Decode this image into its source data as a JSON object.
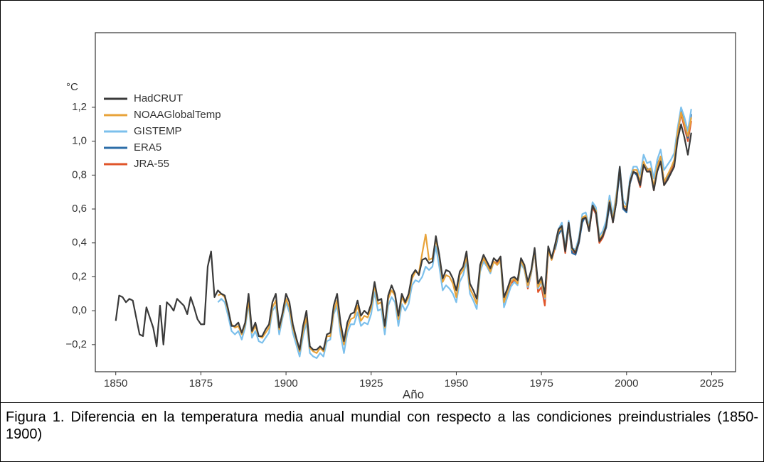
{
  "chart_data": {
    "type": "line",
    "xlabel": "Año",
    "ylabel": "°C",
    "x": [
      1850,
      1851,
      1852,
      1853,
      1854,
      1855,
      1856,
      1857,
      1858,
      1859,
      1860,
      1861,
      1862,
      1863,
      1864,
      1865,
      1866,
      1867,
      1868,
      1869,
      1870,
      1871,
      1872,
      1873,
      1874,
      1875,
      1876,
      1877,
      1878,
      1879,
      1880,
      1881,
      1882,
      1883,
      1884,
      1885,
      1886,
      1887,
      1888,
      1889,
      1890,
      1891,
      1892,
      1893,
      1894,
      1895,
      1896,
      1897,
      1898,
      1899,
      1900,
      1901,
      1902,
      1903,
      1904,
      1905,
      1906,
      1907,
      1908,
      1909,
      1910,
      1911,
      1912,
      1913,
      1914,
      1915,
      1916,
      1917,
      1918,
      1919,
      1920,
      1921,
      1922,
      1923,
      1924,
      1925,
      1926,
      1927,
      1928,
      1929,
      1930,
      1931,
      1932,
      1933,
      1934,
      1935,
      1936,
      1937,
      1938,
      1939,
      1940,
      1941,
      1942,
      1943,
      1944,
      1945,
      1946,
      1947,
      1948,
      1949,
      1950,
      1951,
      1952,
      1953,
      1954,
      1955,
      1956,
      1957,
      1958,
      1959,
      1960,
      1961,
      1962,
      1963,
      1964,
      1965,
      1966,
      1967,
      1968,
      1969,
      1970,
      1971,
      1972,
      1973,
      1974,
      1975,
      1976,
      1977,
      1978,
      1979,
      1980,
      1981,
      1982,
      1983,
      1984,
      1985,
      1986,
      1987,
      1988,
      1989,
      1990,
      1991,
      1992,
      1993,
      1994,
      1995,
      1996,
      1997,
      1998,
      1999,
      2000,
      2001,
      2002,
      2003,
      2004,
      2005,
      2006,
      2007,
      2008,
      2009,
      2010,
      2011,
      2012,
      2013,
      2014,
      2015,
      2016,
      2017,
      2018,
      2019
    ],
    "series": [
      {
        "name": "HadCRUT",
        "color": "#3a3a3a",
        "values": [
          -0.06,
          0.09,
          0.08,
          0.05,
          0.07,
          0.06,
          -0.04,
          -0.14,
          -0.15,
          0.02,
          -0.04,
          -0.1,
          -0.21,
          0.03,
          -0.2,
          0.05,
          0.03,
          0.0,
          0.07,
          0.05,
          0.03,
          -0.02,
          0.08,
          0.02,
          -0.05,
          -0.08,
          -0.08,
          0.26,
          0.35,
          0.08,
          0.12,
          0.1,
          0.09,
          0.01,
          -0.09,
          -0.09,
          -0.07,
          -0.13,
          -0.07,
          0.1,
          -0.12,
          -0.07,
          -0.15,
          -0.15,
          -0.11,
          -0.08,
          0.05,
          0.1,
          -0.1,
          -0.01,
          0.1,
          0.05,
          -0.08,
          -0.16,
          -0.23,
          -0.09,
          0.0,
          -0.21,
          -0.23,
          -0.23,
          -0.21,
          -0.23,
          -0.14,
          -0.13,
          0.03,
          0.1,
          -0.07,
          -0.18,
          -0.07,
          -0.02,
          -0.01,
          0.06,
          -0.03,
          0.0,
          -0.02,
          0.04,
          0.17,
          0.06,
          0.07,
          -0.09,
          0.09,
          0.15,
          0.1,
          -0.03,
          0.1,
          0.05,
          0.1,
          0.21,
          0.24,
          0.21,
          0.3,
          0.31,
          0.28,
          0.29,
          0.44,
          0.33,
          0.19,
          0.24,
          0.23,
          0.19,
          0.12,
          0.23,
          0.26,
          0.35,
          0.16,
          0.12,
          0.07,
          0.27,
          0.33,
          0.29,
          0.25,
          0.31,
          0.29,
          0.32,
          0.08,
          0.13,
          0.19,
          0.2,
          0.18,
          0.31,
          0.27,
          0.17,
          0.24,
          0.37,
          0.16,
          0.2,
          0.1,
          0.38,
          0.31,
          0.39,
          0.48,
          0.5,
          0.35,
          0.52,
          0.37,
          0.34,
          0.41,
          0.54,
          0.55,
          0.47,
          0.62,
          0.58,
          0.41,
          0.44,
          0.5,
          0.64,
          0.52,
          0.64,
          0.85,
          0.61,
          0.59,
          0.76,
          0.82,
          0.81,
          0.74,
          0.86,
          0.82,
          0.82,
          0.71,
          0.82,
          0.88,
          0.74,
          0.77,
          0.81,
          0.85,
          1.01,
          1.1,
          1.02,
          0.92,
          1.05
        ]
      },
      {
        "name": "NOAAGlobalTemp",
        "color": "#e8a33a",
        "values": [
          null,
          null,
          null,
          null,
          null,
          null,
          null,
          null,
          null,
          null,
          null,
          null,
          null,
          null,
          null,
          null,
          null,
          null,
          null,
          null,
          null,
          null,
          null,
          null,
          null,
          null,
          null,
          null,
          null,
          null,
          0.09,
          0.1,
          0.08,
          0.0,
          -0.08,
          -0.1,
          -0.09,
          -0.14,
          -0.08,
          0.06,
          -0.13,
          -0.09,
          -0.15,
          -0.16,
          -0.13,
          -0.1,
          0.02,
          0.06,
          -0.11,
          -0.02,
          0.07,
          0.02,
          -0.1,
          -0.17,
          -0.24,
          -0.12,
          -0.04,
          -0.22,
          -0.24,
          -0.25,
          -0.22,
          -0.24,
          -0.15,
          -0.15,
          0.0,
          0.06,
          -0.1,
          -0.2,
          -0.1,
          -0.05,
          -0.04,
          0.03,
          -0.06,
          -0.03,
          -0.04,
          0.02,
          0.15,
          0.04,
          0.05,
          -0.1,
          0.07,
          0.12,
          0.09,
          -0.05,
          0.08,
          0.04,
          0.08,
          0.19,
          0.23,
          0.22,
          0.34,
          0.45,
          0.3,
          0.31,
          0.42,
          0.32,
          0.17,
          0.21,
          0.2,
          0.16,
          0.08,
          0.21,
          0.24,
          0.32,
          0.13,
          0.09,
          0.04,
          0.25,
          0.31,
          0.27,
          0.23,
          0.29,
          0.27,
          0.3,
          0.05,
          0.11,
          0.17,
          0.19,
          0.16,
          0.3,
          0.25,
          0.15,
          0.23,
          0.36,
          0.14,
          0.18,
          0.08,
          0.36,
          0.3,
          0.38,
          0.47,
          0.49,
          0.36,
          0.51,
          0.36,
          0.35,
          0.41,
          0.55,
          0.56,
          0.48,
          0.62,
          0.59,
          0.42,
          0.45,
          0.5,
          0.65,
          0.53,
          0.67,
          0.84,
          0.62,
          0.61,
          0.76,
          0.83,
          0.83,
          0.76,
          0.88,
          0.83,
          0.84,
          0.73,
          0.85,
          0.91,
          0.76,
          0.8,
          0.84,
          0.89,
          1.05,
          1.17,
          1.1,
          1.03,
          1.14
        ]
      },
      {
        "name": "GISTEMP",
        "color": "#7cc0ec",
        "values": [
          null,
          null,
          null,
          null,
          null,
          null,
          null,
          null,
          null,
          null,
          null,
          null,
          null,
          null,
          null,
          null,
          null,
          null,
          null,
          null,
          null,
          null,
          null,
          null,
          null,
          null,
          null,
          null,
          null,
          null,
          0.05,
          0.07,
          0.05,
          -0.03,
          -0.12,
          -0.14,
          -0.12,
          -0.17,
          -0.1,
          0.04,
          -0.16,
          -0.12,
          -0.18,
          -0.19,
          -0.16,
          -0.13,
          0.0,
          0.03,
          -0.14,
          -0.04,
          0.05,
          -0.01,
          -0.13,
          -0.2,
          -0.27,
          -0.15,
          -0.07,
          -0.25,
          -0.27,
          -0.28,
          -0.25,
          -0.27,
          -0.18,
          -0.17,
          -0.02,
          0.03,
          -0.14,
          -0.25,
          -0.13,
          -0.08,
          -0.08,
          -0.01,
          -0.09,
          -0.07,
          -0.08,
          -0.02,
          0.11,
          0.0,
          0.01,
          -0.14,
          0.03,
          0.08,
          0.05,
          -0.09,
          0.04,
          0.0,
          0.04,
          0.15,
          0.18,
          0.17,
          0.2,
          0.26,
          0.24,
          0.26,
          0.38,
          0.26,
          0.12,
          0.15,
          0.13,
          0.1,
          0.05,
          0.17,
          0.21,
          0.29,
          0.1,
          0.06,
          0.01,
          0.23,
          0.29,
          0.26,
          0.22,
          0.29,
          0.27,
          0.29,
          0.02,
          0.08,
          0.14,
          0.17,
          0.15,
          0.28,
          0.24,
          0.14,
          0.22,
          0.35,
          0.13,
          0.17,
          0.07,
          0.36,
          0.31,
          0.39,
          0.48,
          0.52,
          0.37,
          0.53,
          0.37,
          0.36,
          0.43,
          0.57,
          0.58,
          0.5,
          0.64,
          0.61,
          0.44,
          0.47,
          0.53,
          0.68,
          0.56,
          0.69,
          0.85,
          0.65,
          0.62,
          0.78,
          0.85,
          0.85,
          0.8,
          0.92,
          0.87,
          0.88,
          0.78,
          0.89,
          0.95,
          0.83,
          0.86,
          0.89,
          0.93,
          1.08,
          1.2,
          1.14,
          1.06,
          1.19
        ]
      },
      {
        "name": "ERA5",
        "color": "#2d6ea8",
        "values": [
          null,
          null,
          null,
          null,
          null,
          null,
          null,
          null,
          null,
          null,
          null,
          null,
          null,
          null,
          null,
          null,
          null,
          null,
          null,
          null,
          null,
          null,
          null,
          null,
          null,
          null,
          null,
          null,
          null,
          null,
          null,
          null,
          null,
          null,
          null,
          null,
          null,
          null,
          null,
          null,
          null,
          null,
          null,
          null,
          null,
          null,
          null,
          null,
          null,
          null,
          null,
          null,
          null,
          null,
          null,
          null,
          null,
          null,
          null,
          null,
          null,
          null,
          null,
          null,
          null,
          null,
          null,
          null,
          null,
          null,
          null,
          null,
          null,
          null,
          null,
          null,
          null,
          null,
          null,
          null,
          null,
          null,
          null,
          null,
          null,
          null,
          null,
          null,
          null,
          null,
          null,
          null,
          null,
          null,
          null,
          null,
          null,
          null,
          null,
          null,
          null,
          null,
          null,
          null,
          null,
          null,
          null,
          null,
          null,
          null,
          null,
          null,
          null,
          null,
          null,
          null,
          null,
          null,
          null,
          null,
          null,
          null,
          null,
          null,
          null,
          null,
          null,
          null,
          null,
          0.36,
          0.45,
          0.48,
          0.36,
          0.5,
          0.34,
          0.33,
          0.4,
          0.52,
          0.56,
          0.47,
          0.63,
          0.58,
          0.42,
          0.44,
          0.49,
          0.62,
          0.53,
          0.64,
          0.82,
          0.6,
          0.58,
          0.75,
          0.82,
          0.8,
          0.74,
          0.87,
          0.84,
          0.83,
          0.72,
          0.86,
          0.91,
          0.76,
          0.79,
          0.84,
          0.88,
          1.04,
          1.18,
          1.1,
          1.02,
          1.16
        ]
      },
      {
        "name": "JRA-55",
        "color": "#e0552a",
        "values": [
          null,
          null,
          null,
          null,
          null,
          null,
          null,
          null,
          null,
          null,
          null,
          null,
          null,
          null,
          null,
          null,
          null,
          null,
          null,
          null,
          null,
          null,
          null,
          null,
          null,
          null,
          null,
          null,
          null,
          null,
          null,
          null,
          null,
          null,
          null,
          null,
          null,
          null,
          null,
          null,
          null,
          null,
          null,
          null,
          null,
          null,
          null,
          null,
          null,
          null,
          null,
          null,
          null,
          null,
          null,
          null,
          null,
          null,
          null,
          null,
          null,
          null,
          null,
          null,
          null,
          null,
          null,
          null,
          null,
          null,
          null,
          null,
          null,
          null,
          null,
          null,
          null,
          null,
          null,
          null,
          null,
          null,
          null,
          null,
          null,
          null,
          null,
          null,
          null,
          null,
          null,
          null,
          null,
          null,
          null,
          null,
          null,
          null,
          null,
          null,
          null,
          null,
          null,
          null,
          null,
          null,
          null,
          null,
          0.3,
          0.27,
          0.24,
          0.29,
          0.28,
          0.31,
          0.06,
          0.1,
          0.16,
          0.18,
          0.16,
          0.29,
          0.25,
          0.13,
          0.22,
          0.35,
          0.11,
          0.14,
          0.03,
          0.36,
          0.3,
          0.37,
          0.46,
          0.48,
          0.34,
          0.5,
          0.35,
          0.33,
          0.4,
          0.53,
          0.55,
          0.47,
          0.61,
          0.57,
          0.4,
          0.43,
          0.49,
          0.63,
          0.52,
          0.65,
          0.84,
          0.6,
          0.6,
          0.75,
          0.82,
          0.8,
          0.73,
          0.86,
          0.82,
          0.83,
          0.71,
          0.84,
          0.9,
          0.74,
          0.78,
          0.83,
          0.87,
          1.05,
          1.16,
          1.08,
          1.0,
          1.12
        ]
      }
    ],
    "xlim": [
      1844,
      2032
    ],
    "ylim": [
      -0.36,
      1.64
    ],
    "xticks": [
      1850,
      1875,
      1900,
      1925,
      1950,
      1975,
      2000,
      2025
    ],
    "yticks": [
      {
        "value": -0.2,
        "label": "−0,2"
      },
      {
        "value": 0,
        "label": "0,0"
      },
      {
        "value": 0.2,
        "label": "0,2"
      },
      {
        "value": 0.4,
        "label": "0,4"
      },
      {
        "value": 0.6,
        "label": "0,6"
      },
      {
        "value": 0.8,
        "label": "0,8"
      },
      {
        "value": 1.0,
        "label": "1,0"
      },
      {
        "value": 1.2,
        "label": "1,2"
      }
    ],
    "legend": "upper left"
  },
  "caption": "Figura 1. Diferencia en la temperatura media anual mundial con respecto a las condiciones preindustriales (1850- 1900)"
}
